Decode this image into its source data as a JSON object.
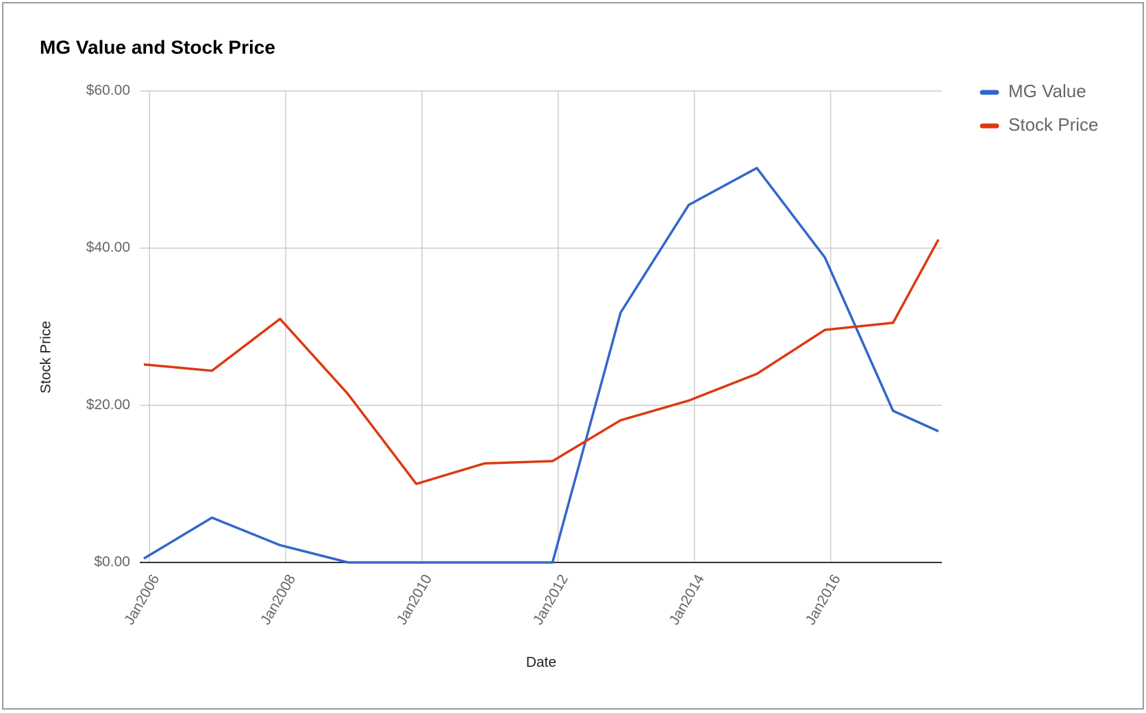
{
  "chart_data": {
    "type": "line",
    "title": "MG Value and Stock Price",
    "x_label": "Date",
    "y_label": "Stock Price",
    "x": [
      "2005-12",
      "2006-12",
      "2007-12",
      "2008-12",
      "2009-12",
      "2010-12",
      "2011-12",
      "2012-12",
      "2013-12",
      "2014-12",
      "2015-12",
      "2016-12",
      "2017-08"
    ],
    "series": [
      {
        "name": "MG Value",
        "color": "#3366cc",
        "values": [
          0.5,
          5.7,
          2.2,
          0,
          0,
          0,
          0,
          31.8,
          45.5,
          50.2,
          38.8,
          19.3,
          16.7
        ]
      },
      {
        "name": "Stock Price",
        "color": "#dc3912",
        "values": [
          25.2,
          24.4,
          31.0,
          21.4,
          10.0,
          12.6,
          12.9,
          18.1,
          20.6,
          24.0,
          29.6,
          30.5,
          41.1
        ]
      }
    ],
    "xlim": [
      "2005-12",
      "2017-08"
    ],
    "xticks": [
      {
        "value": "2006-01",
        "label": "Jan2006"
      },
      {
        "value": "2008-01",
        "label": "Jan2008"
      },
      {
        "value": "2010-01",
        "label": "Jan2010"
      },
      {
        "value": "2012-01",
        "label": "Jan2012"
      },
      {
        "value": "2014-01",
        "label": "Jan2014"
      },
      {
        "value": "2016-01",
        "label": "Jan2016"
      }
    ],
    "ylim": [
      0,
      60
    ],
    "yticks": [
      {
        "value": 0,
        "label": "$0.00"
      },
      {
        "value": 20,
        "label": "$20.00"
      },
      {
        "value": 40,
        "label": "$40.00"
      },
      {
        "value": 60,
        "label": "$60.00"
      }
    ],
    "grid": true,
    "legend": "right"
  }
}
